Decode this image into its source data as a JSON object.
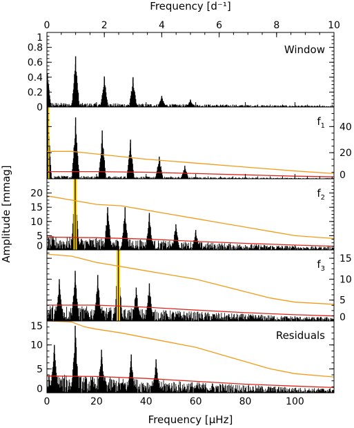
{
  "chart_data": {
    "type": "line",
    "top_axis": {
      "label": "Frequency [d⁻¹]",
      "range": [
        0,
        10
      ],
      "ticks": [
        0,
        2,
        4,
        6,
        8,
        10
      ],
      "tick_labels": [
        "0",
        "2",
        "4",
        "6",
        "8",
        "10"
      ]
    },
    "bottom_axis": {
      "label": "Frequency [μHz]",
      "range": [
        0,
        115.74
      ],
      "ticks": [
        0,
        20,
        40,
        60,
        80,
        100
      ],
      "tick_labels": [
        "0",
        "20",
        "40",
        "60",
        "80",
        "100"
      ]
    },
    "ylabel": "Amplitude [mmag]",
    "colors": {
      "spectrum": "#000000",
      "threshold_upper": "#f59a18",
      "threshold_lower": "#e0241a",
      "highlight": "#ffd200"
    },
    "panels": [
      {
        "id": "window",
        "title": "Window",
        "title_sub": "",
        "ylim": [
          0,
          1
        ],
        "yaxis_side": "left",
        "yticks": [
          0,
          0.2,
          0.4,
          0.6,
          0.8,
          1
        ],
        "ytick_labels": [
          "0",
          "0.2",
          "0.4",
          "0.6",
          "0.8",
          "1"
        ],
        "noise": 0.06,
        "peaks": [
          {
            "f": 0.2,
            "a": 0.45
          },
          {
            "f": 11.57,
            "a": 0.68
          },
          {
            "f": 23.15,
            "a": 0.41
          },
          {
            "f": 34.72,
            "a": 0.4
          },
          {
            "f": 46.3,
            "a": 0.15
          },
          {
            "f": 57.87,
            "a": 0.1
          }
        ],
        "orange": null,
        "red": null,
        "highlight": null
      },
      {
        "id": "f1",
        "title": "f",
        "title_sub": "1",
        "ylim": [
          0,
          55
        ],
        "yaxis_side": "right",
        "yticks": [
          0,
          20,
          40
        ],
        "ytick_labels": [
          "0",
          "20",
          "40"
        ],
        "noise": 2.5,
        "peaks": [
          {
            "f": 0.3,
            "a": 55
          },
          {
            "f": 11.57,
            "a": 47
          },
          {
            "f": 22.3,
            "a": 37
          },
          {
            "f": 33.7,
            "a": 30
          },
          {
            "f": 45.3,
            "a": 17
          },
          {
            "f": 55.6,
            "a": 10
          }
        ],
        "orange": {
          "x": [
            0,
            10,
            25,
            40,
            60,
            80,
            100,
            115.74
          ],
          "y": [
            21,
            21,
            18,
            15,
            12,
            9,
            6,
            4
          ]
        },
        "red": {
          "x": [
            0,
            20,
            40,
            60,
            80,
            100,
            115.74
          ],
          "y": [
            5.5,
            5.5,
            5,
            4,
            3,
            2,
            1.5
          ]
        },
        "highlight": {
          "f": 0.3,
          "a": 55
        }
      },
      {
        "id": "f2",
        "title": "f",
        "title_sub": "2",
        "ylim": [
          0,
          25
        ],
        "yaxis_side": "left",
        "yticks": [
          0,
          5,
          10,
          15,
          20
        ],
        "ytick_labels": [
          "0",
          "5",
          "10",
          "15",
          "20"
        ],
        "noise": 5,
        "peaks": [
          {
            "f": 11.4,
            "a": 25
          },
          {
            "f": 24.5,
            "a": 15
          },
          {
            "f": 31.5,
            "a": 15
          },
          {
            "f": 41.3,
            "a": 13
          },
          {
            "f": 52,
            "a": 9
          },
          {
            "f": 60,
            "a": 7
          }
        ],
        "orange": {
          "x": [
            0,
            10,
            20,
            30,
            40,
            50,
            60,
            70,
            80,
            90,
            100,
            115.74
          ],
          "y": [
            19,
            17.5,
            16,
            15.5,
            14,
            12.5,
            11,
            9.5,
            8,
            6.5,
            5,
            4
          ]
        },
        "red": {
          "x": [
            0,
            20,
            40,
            60,
            80,
            100,
            115.74
          ],
          "y": [
            4.5,
            4.3,
            3.8,
            3,
            2.3,
            1.7,
            1.3
          ]
        },
        "highlight": {
          "f": 11.4,
          "a": 25
        }
      },
      {
        "id": "f3",
        "title": "f",
        "title_sub": "3",
        "ylim": [
          0,
          17
        ],
        "yaxis_side": "right",
        "yticks": [
          0,
          5,
          10,
          15
        ],
        "ytick_labels": [
          "0",
          "5",
          "10",
          "15"
        ],
        "noise": 4,
        "peaks": [
          {
            "f": 11.4,
            "a": 12
          },
          {
            "f": 20.5,
            "a": 11
          },
          {
            "f": 28.8,
            "a": 17
          },
          {
            "f": 41.3,
            "a": 9
          },
          {
            "f": 36,
            "a": 8
          },
          {
            "f": 5,
            "a": 10
          }
        ],
        "orange": {
          "x": [
            0,
            10,
            20,
            30,
            40,
            50,
            60,
            70,
            80,
            90,
            100,
            115.74
          ],
          "y": [
            16,
            15.5,
            14,
            13,
            12,
            11,
            10,
            8.5,
            7,
            5.5,
            4.5,
            4
          ]
        },
        "red": {
          "x": [
            0,
            20,
            40,
            60,
            80,
            100,
            115.74
          ],
          "y": [
            3.8,
            3.8,
            3.3,
            2.6,
            2,
            1.5,
            1.2
          ]
        },
        "highlight": {
          "f": 28.8,
          "a": 17
        }
      },
      {
        "id": "residuals",
        "title": "Residuals",
        "title_sub": "",
        "ylim": [
          0,
          15
        ],
        "yaxis_side": "left",
        "yticks": [
          0,
          5,
          10,
          15
        ],
        "ytick_labels": [
          "0",
          "5",
          "10",
          "15"
        ],
        "noise": 4,
        "peaks": [
          {
            "f": 11.4,
            "a": 14
          },
          {
            "f": 3,
            "a": 10
          },
          {
            "f": 22,
            "a": 9
          },
          {
            "f": 34,
            "a": 8
          },
          {
            "f": 44,
            "a": 7
          }
        ],
        "orange": {
          "x": [
            0,
            10,
            15,
            20,
            30,
            40,
            50,
            60,
            70,
            80,
            90,
            100,
            115.74
          ],
          "y": [
            15,
            14.8,
            13.8,
            13.3,
            12.5,
            11.5,
            10.5,
            9.5,
            8,
            6.5,
            5,
            4,
            3.3
          ]
        },
        "red": {
          "x": [
            0,
            20,
            40,
            60,
            80,
            100,
            115.74
          ],
          "y": [
            3.5,
            3.4,
            3,
            2.4,
            1.8,
            1.4,
            1.1
          ]
        },
        "highlight": null
      }
    ]
  }
}
